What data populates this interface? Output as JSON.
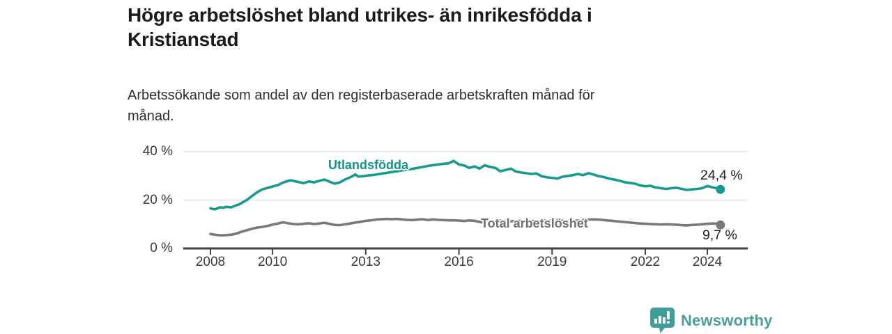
{
  "header": {
    "title_line1": "Högre arbetslöshet bland utrikes- än inrikesfödda i",
    "title_line2": "Kristianstad",
    "subtitle_line1": "Arbetssökande som andel av den registerbaserade arbetskraften månad för",
    "subtitle_line2": "månad."
  },
  "chart_data": {
    "type": "line",
    "title": "Högre arbetslöshet bland utrikes- än inrikesfödda i Kristianstad",
    "subtitle": "Arbetssökande som andel av den registerbaserade arbetskraften månad för månad.",
    "unit": "%",
    "grid": "horizontal",
    "x_axis": {
      "range": [
        2007.125,
        2025.3
      ],
      "ticks": [
        "2008",
        "2010",
        "2013",
        "2016",
        "2019",
        "2022",
        "2024"
      ],
      "tick_values": [
        2008,
        2010,
        2013,
        2016,
        2019,
        2022,
        2024
      ]
    },
    "y_axis": {
      "range": [
        0,
        42.3
      ],
      "ticks": [
        {
          "value": 0,
          "label": "0 %"
        },
        {
          "value": 20,
          "label": "20 %"
        },
        {
          "value": 40,
          "label": "40 %"
        }
      ]
    },
    "series": [
      {
        "name": "Utlandsfödda",
        "color": "#169b8e",
        "label_color": "#11948a",
        "end_label": "24,4 %",
        "end_value": 24.4,
        "points": [
          [
            2008.0,
            16.6
          ],
          [
            2008.08,
            16.3
          ],
          [
            2008.17,
            16.2
          ],
          [
            2008.25,
            16.8
          ],
          [
            2008.33,
            17.0
          ],
          [
            2008.42,
            16.8
          ],
          [
            2008.5,
            17.2
          ],
          [
            2008.58,
            17.1
          ],
          [
            2008.67,
            17.0
          ],
          [
            2008.75,
            17.4
          ],
          [
            2008.83,
            17.8
          ],
          [
            2008.92,
            18.2
          ],
          [
            2009.0,
            18.8
          ],
          [
            2009.17,
            20.0
          ],
          [
            2009.33,
            21.6
          ],
          [
            2009.5,
            23.2
          ],
          [
            2009.67,
            24.4
          ],
          [
            2009.83,
            25.0
          ],
          [
            2010.0,
            25.6
          ],
          [
            2010.17,
            26.2
          ],
          [
            2010.33,
            27.2
          ],
          [
            2010.5,
            27.9
          ],
          [
            2010.58,
            28.2
          ],
          [
            2010.75,
            27.7
          ],
          [
            2010.92,
            27.2
          ],
          [
            2011.0,
            27.0
          ],
          [
            2011.17,
            27.7
          ],
          [
            2011.33,
            27.3
          ],
          [
            2011.5,
            27.9
          ],
          [
            2011.67,
            28.5
          ],
          [
            2011.83,
            27.6
          ],
          [
            2012.0,
            26.8
          ],
          [
            2012.17,
            27.3
          ],
          [
            2012.33,
            28.5
          ],
          [
            2012.5,
            29.4
          ],
          [
            2012.67,
            30.6
          ],
          [
            2012.75,
            29.7
          ],
          [
            2012.92,
            29.9
          ],
          [
            2013.08,
            30.2
          ],
          [
            2013.25,
            30.4
          ],
          [
            2013.5,
            30.9
          ],
          [
            2013.75,
            31.4
          ],
          [
            2014.0,
            31.9
          ],
          [
            2014.25,
            32.4
          ],
          [
            2014.5,
            32.9
          ],
          [
            2014.75,
            33.5
          ],
          [
            2015.0,
            34.1
          ],
          [
            2015.25,
            34.6
          ],
          [
            2015.5,
            35.0
          ],
          [
            2015.67,
            35.2
          ],
          [
            2015.83,
            36.2
          ],
          [
            2016.0,
            34.7
          ],
          [
            2016.17,
            34.3
          ],
          [
            2016.33,
            33.3
          ],
          [
            2016.5,
            33.9
          ],
          [
            2016.67,
            33.0
          ],
          [
            2016.83,
            34.4
          ],
          [
            2017.0,
            33.7
          ],
          [
            2017.17,
            33.3
          ],
          [
            2017.33,
            31.9
          ],
          [
            2017.5,
            32.4
          ],
          [
            2017.67,
            33.0
          ],
          [
            2017.83,
            31.8
          ],
          [
            2018.0,
            31.4
          ],
          [
            2018.17,
            31.1
          ],
          [
            2018.33,
            30.8
          ],
          [
            2018.5,
            31.0
          ],
          [
            2018.67,
            29.8
          ],
          [
            2018.83,
            29.4
          ],
          [
            2019.0,
            29.2
          ],
          [
            2019.17,
            28.9
          ],
          [
            2019.33,
            29.6
          ],
          [
            2019.5,
            30.0
          ],
          [
            2019.67,
            30.3
          ],
          [
            2019.83,
            30.8
          ],
          [
            2020.0,
            30.3
          ],
          [
            2020.17,
            31.1
          ],
          [
            2020.33,
            30.6
          ],
          [
            2020.5,
            29.9
          ],
          [
            2020.67,
            29.5
          ],
          [
            2020.83,
            28.9
          ],
          [
            2021.0,
            28.5
          ],
          [
            2021.17,
            28.0
          ],
          [
            2021.33,
            27.4
          ],
          [
            2021.5,
            27.1
          ],
          [
            2021.67,
            26.8
          ],
          [
            2021.83,
            26.1
          ],
          [
            2022.0,
            25.7
          ],
          [
            2022.17,
            25.9
          ],
          [
            2022.33,
            25.2
          ],
          [
            2022.5,
            24.9
          ],
          [
            2022.67,
            24.6
          ],
          [
            2022.83,
            24.9
          ],
          [
            2023.0,
            25.1
          ],
          [
            2023.17,
            24.6
          ],
          [
            2023.33,
            24.2
          ],
          [
            2023.5,
            24.4
          ],
          [
            2023.67,
            24.6
          ],
          [
            2023.83,
            24.9
          ],
          [
            2024.0,
            25.8
          ],
          [
            2024.17,
            25.2
          ],
          [
            2024.33,
            24.8
          ],
          [
            2024.42,
            24.4
          ]
        ]
      },
      {
        "name": "Total arbetslöshet",
        "color": "#77797c",
        "label_color": "#6e7175",
        "end_label": "9,7 %",
        "end_value": 9.7,
        "points": [
          [
            2008.0,
            6.0
          ],
          [
            2008.17,
            5.6
          ],
          [
            2008.33,
            5.4
          ],
          [
            2008.5,
            5.5
          ],
          [
            2008.67,
            5.7
          ],
          [
            2008.83,
            6.1
          ],
          [
            2009.0,
            6.9
          ],
          [
            2009.17,
            7.5
          ],
          [
            2009.33,
            8.1
          ],
          [
            2009.5,
            8.6
          ],
          [
            2009.67,
            8.9
          ],
          [
            2009.83,
            9.3
          ],
          [
            2010.0,
            9.8
          ],
          [
            2010.17,
            10.3
          ],
          [
            2010.33,
            10.8
          ],
          [
            2010.5,
            10.4
          ],
          [
            2010.67,
            10.1
          ],
          [
            2010.83,
            10.0
          ],
          [
            2011.0,
            10.2
          ],
          [
            2011.17,
            10.4
          ],
          [
            2011.33,
            10.1
          ],
          [
            2011.5,
            10.3
          ],
          [
            2011.67,
            10.6
          ],
          [
            2011.83,
            10.2
          ],
          [
            2012.0,
            9.7
          ],
          [
            2012.17,
            9.6
          ],
          [
            2012.33,
            10.0
          ],
          [
            2012.5,
            10.3
          ],
          [
            2012.67,
            10.7
          ],
          [
            2012.83,
            11.0
          ],
          [
            2013.0,
            11.4
          ],
          [
            2013.17,
            11.6
          ],
          [
            2013.33,
            11.9
          ],
          [
            2013.5,
            12.1
          ],
          [
            2013.67,
            12.2
          ],
          [
            2013.83,
            12.1
          ],
          [
            2014.0,
            12.2
          ],
          [
            2014.17,
            12.0
          ],
          [
            2014.33,
            11.8
          ],
          [
            2014.5,
            11.7
          ],
          [
            2014.67,
            11.9
          ],
          [
            2014.83,
            12.1
          ],
          [
            2015.0,
            11.7
          ],
          [
            2015.17,
            12.0
          ],
          [
            2015.33,
            11.8
          ],
          [
            2015.5,
            11.7
          ],
          [
            2015.67,
            11.6
          ],
          [
            2015.83,
            11.6
          ],
          [
            2016.0,
            11.5
          ],
          [
            2016.17,
            11.3
          ],
          [
            2016.33,
            11.6
          ],
          [
            2016.5,
            11.4
          ],
          [
            2016.67,
            11.0
          ],
          [
            2016.83,
            10.6
          ],
          [
            2017.0,
            10.9
          ],
          [
            2017.17,
            11.2
          ],
          [
            2017.33,
            11.5
          ],
          [
            2017.5,
            11.3
          ],
          [
            2017.67,
            11.2
          ],
          [
            2017.83,
            11.3
          ],
          [
            2018.0,
            11.4
          ],
          [
            2018.17,
            11.2
          ],
          [
            2018.33,
            11.3
          ],
          [
            2018.5,
            11.2
          ],
          [
            2018.67,
            11.4
          ],
          [
            2018.83,
            11.5
          ],
          [
            2019.0,
            11.4
          ],
          [
            2019.17,
            11.3
          ],
          [
            2019.33,
            11.5
          ],
          [
            2019.5,
            11.3
          ],
          [
            2019.67,
            11.4
          ],
          [
            2019.83,
            11.5
          ],
          [
            2020.0,
            11.7
          ],
          [
            2020.17,
            11.9
          ],
          [
            2020.33,
            12.0
          ],
          [
            2020.5,
            11.9
          ],
          [
            2020.67,
            11.7
          ],
          [
            2020.83,
            11.5
          ],
          [
            2021.0,
            11.3
          ],
          [
            2021.17,
            11.1
          ],
          [
            2021.33,
            10.9
          ],
          [
            2021.5,
            10.7
          ],
          [
            2021.67,
            10.5
          ],
          [
            2021.83,
            10.3
          ],
          [
            2022.0,
            10.2
          ],
          [
            2022.17,
            10.1
          ],
          [
            2022.33,
            10.0
          ],
          [
            2022.5,
            9.9
          ],
          [
            2022.67,
            10.0
          ],
          [
            2022.83,
            9.9
          ],
          [
            2023.0,
            9.8
          ],
          [
            2023.17,
            9.6
          ],
          [
            2023.33,
            9.5
          ],
          [
            2023.5,
            9.7
          ],
          [
            2023.67,
            9.8
          ],
          [
            2023.83,
            10.0
          ],
          [
            2024.0,
            10.2
          ],
          [
            2024.17,
            10.3
          ],
          [
            2024.33,
            10.2
          ],
          [
            2024.42,
            9.7
          ]
        ]
      }
    ],
    "style": {
      "grid_color": "#e9e9e9",
      "axis_color": "#3f4246",
      "background": "#ffffff"
    }
  },
  "branding": {
    "logo_text": "Newsworthy",
    "logo_color": "#4ba19a",
    "logo_icon": "bar-chart-speech-bubble-icon"
  }
}
